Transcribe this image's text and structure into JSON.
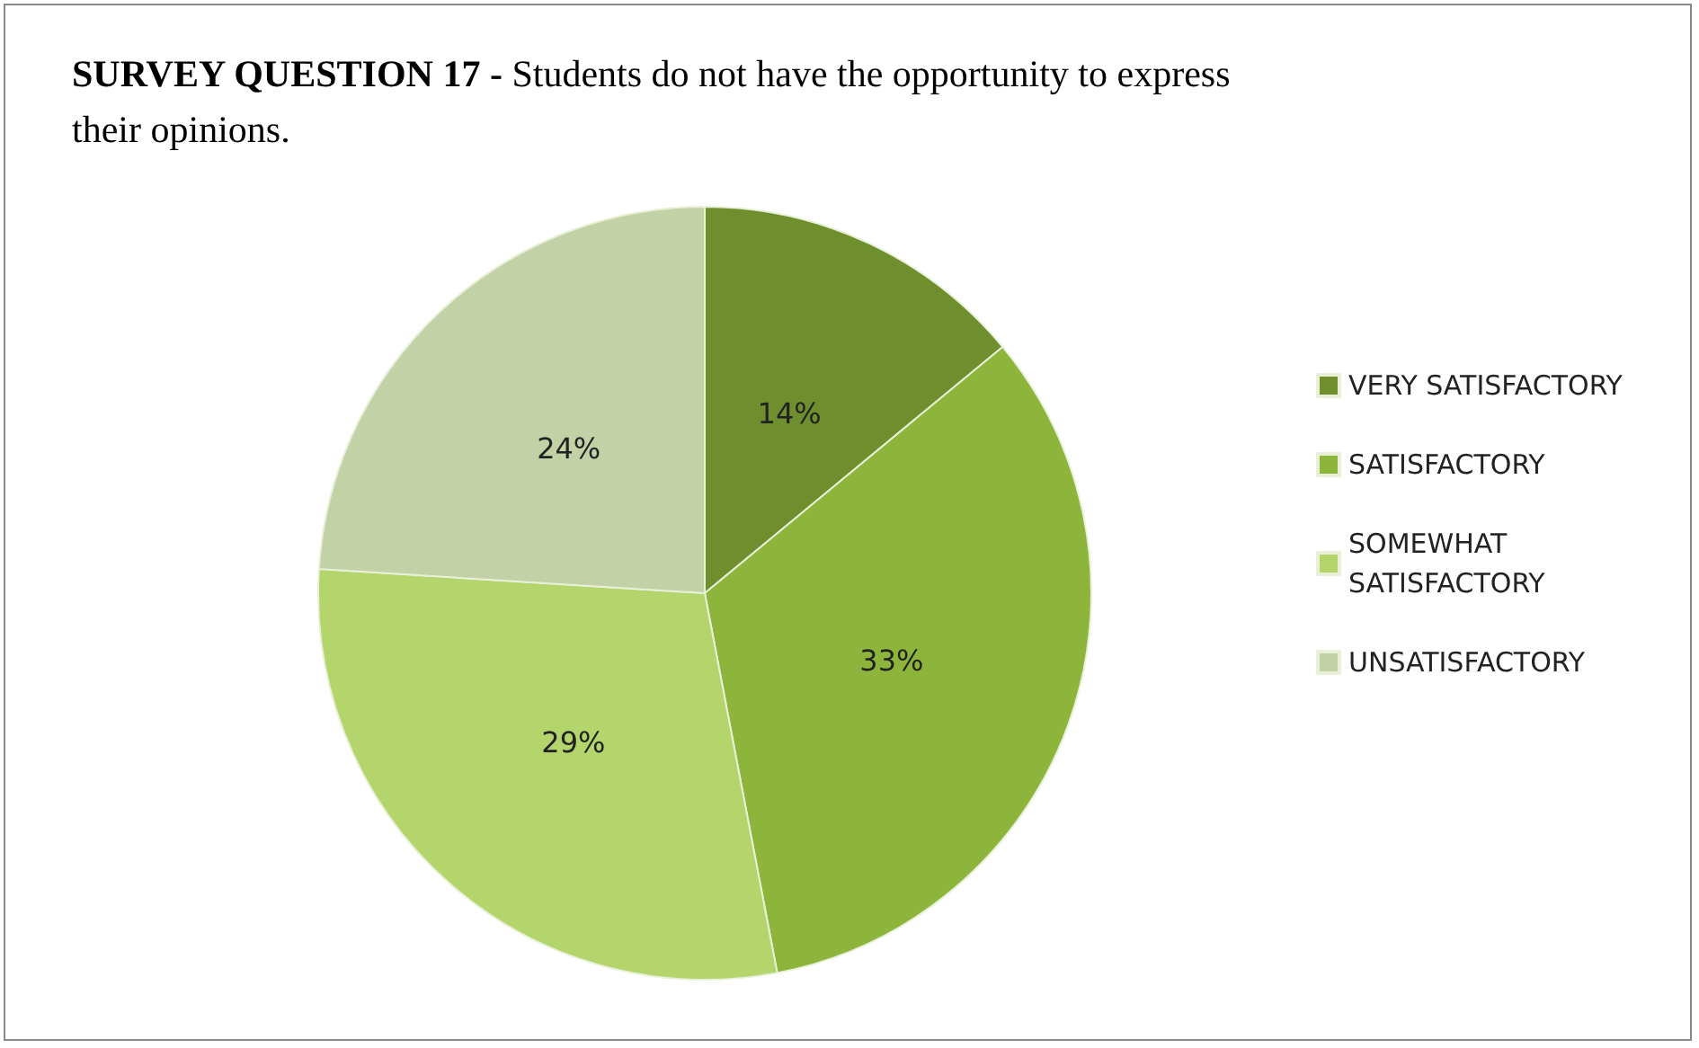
{
  "chart_data": {
    "type": "pie",
    "title": "SURVEY QUESTION 17 - Students do not have the opportunity to express their opinions.",
    "categories": [
      "VERY SATISFACTORY",
      "SATISFACTORY",
      "SOMEWHAT SATISFACTORY",
      "UNSATISFACTORY"
    ],
    "values": [
      14,
      33,
      29,
      24
    ],
    "value_labels": [
      "14%",
      "33%",
      "29%",
      "24%"
    ],
    "colors": [
      "#6f8f2e",
      "#8db53c",
      "#b4d46c",
      "#c3d1a6"
    ],
    "legend": "right"
  }
}
